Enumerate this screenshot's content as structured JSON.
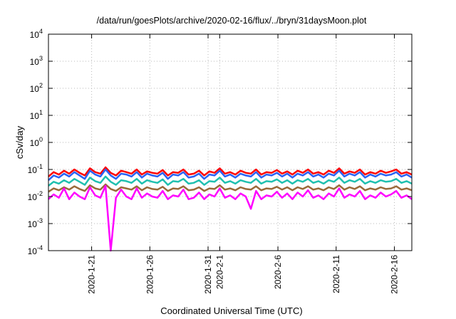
{
  "chart_data": {
    "type": "line",
    "title": "/data/run/goesPlots/archive/2020-02-16/flux/../bryn/31daysMoon.plot",
    "xlabel": "Coordinated Universal Time (UTC)",
    "ylabel": "cSv/day",
    "yscale": "log",
    "ylim": [
      0.0001,
      10000
    ],
    "xlim": [
      "2020-01-17T07:00",
      "2020-02-17T12:00"
    ],
    "grid": true,
    "y_ticks": [
      {
        "base": "10",
        "exp": "-4",
        "value": 0.0001
      },
      {
        "base": "10",
        "exp": "-3",
        "value": 0.001
      },
      {
        "base": "10",
        "exp": "-2",
        "value": 0.01
      },
      {
        "base": "10",
        "exp": "-1",
        "value": 0.1
      },
      {
        "base": "10",
        "exp": "0",
        "value": 1
      },
      {
        "base": "10",
        "exp": "1",
        "value": 10
      },
      {
        "base": "10",
        "exp": "2",
        "value": 100
      },
      {
        "base": "10",
        "exp": "3",
        "value": 1000
      },
      {
        "base": "10",
        "exp": "4",
        "value": 10000
      }
    ],
    "x_ticks": [
      {
        "label": "2020-1-21",
        "value": "2020-01-21"
      },
      {
        "label": "2020-1-26",
        "value": "2020-01-26"
      },
      {
        "label": "2020-1-31",
        "value": "2020-01-31"
      },
      {
        "label": "2020-2-1",
        "value": "2020-02-01"
      },
      {
        "label": "2020-2-6",
        "value": "2020-02-06"
      },
      {
        "label": "2020-2-11",
        "value": "2020-02-11"
      },
      {
        "label": "2020-2-16",
        "value": "2020-02-16"
      }
    ],
    "series": [
      {
        "color": "#ff0000",
        "y": [
          0.055,
          0.08,
          0.065,
          0.09,
          0.07,
          0.1,
          0.075,
          0.06,
          0.11,
          0.08,
          0.07,
          0.12,
          0.075,
          0.06,
          0.09,
          0.08,
          0.07,
          0.1,
          0.065,
          0.085,
          0.075,
          0.07,
          0.095,
          0.06,
          0.08,
          0.075,
          0.1,
          0.065,
          0.07,
          0.09,
          0.06,
          0.085,
          0.075,
          0.11,
          0.07,
          0.08,
          0.065,
          0.09,
          0.075,
          0.07,
          0.1,
          0.065,
          0.08,
          0.075,
          0.095,
          0.07,
          0.085,
          0.065,
          0.09,
          0.075,
          0.1,
          0.07,
          0.08,
          0.065,
          0.09,
          0.075,
          0.11,
          0.07,
          0.085,
          0.075,
          0.1,
          0.065,
          0.08,
          0.07,
          0.09,
          0.075,
          0.085,
          0.1,
          0.07,
          0.08,
          0.065
        ]
      },
      {
        "color": "#2b63f5",
        "y": [
          0.04,
          0.06,
          0.05,
          0.07,
          0.055,
          0.08,
          0.06,
          0.045,
          0.09,
          0.065,
          0.055,
          0.1,
          0.06,
          0.045,
          0.07,
          0.065,
          0.055,
          0.08,
          0.05,
          0.07,
          0.06,
          0.055,
          0.075,
          0.045,
          0.065,
          0.06,
          0.08,
          0.05,
          0.055,
          0.07,
          0.045,
          0.065,
          0.06,
          0.09,
          0.055,
          0.065,
          0.05,
          0.07,
          0.06,
          0.055,
          0.08,
          0.05,
          0.065,
          0.06,
          0.075,
          0.055,
          0.07,
          0.05,
          0.07,
          0.06,
          0.08,
          0.055,
          0.065,
          0.05,
          0.07,
          0.06,
          0.09,
          0.055,
          0.07,
          0.06,
          0.08,
          0.05,
          0.065,
          0.055,
          0.07,
          0.06,
          0.065,
          0.08,
          0.055,
          0.065,
          0.05
        ]
      },
      {
        "color": "#20c0b0",
        "y": [
          0.025,
          0.035,
          0.03,
          0.04,
          0.032,
          0.045,
          0.035,
          0.027,
          0.05,
          0.037,
          0.032,
          0.055,
          0.035,
          0.027,
          0.04,
          0.037,
          0.032,
          0.045,
          0.03,
          0.04,
          0.035,
          0.032,
          0.043,
          0.027,
          0.037,
          0.035,
          0.045,
          0.03,
          0.032,
          0.04,
          0.027,
          0.037,
          0.035,
          0.05,
          0.032,
          0.037,
          0.03,
          0.04,
          0.035,
          0.032,
          0.045,
          0.03,
          0.037,
          0.035,
          0.043,
          0.032,
          0.04,
          0.03,
          0.04,
          0.035,
          0.045,
          0.032,
          0.037,
          0.03,
          0.04,
          0.035,
          0.05,
          0.032,
          0.04,
          0.035,
          0.045,
          0.03,
          0.037,
          0.032,
          0.04,
          0.035,
          0.037,
          0.045,
          0.032,
          0.037,
          0.03
        ]
      },
      {
        "color": "#9a6a3a",
        "y": [
          0.015,
          0.02,
          0.017,
          0.022,
          0.018,
          0.024,
          0.019,
          0.016,
          0.026,
          0.02,
          0.018,
          0.028,
          0.019,
          0.016,
          0.022,
          0.02,
          0.018,
          0.024,
          0.017,
          0.022,
          0.019,
          0.018,
          0.023,
          0.016,
          0.02,
          0.019,
          0.024,
          0.017,
          0.018,
          0.022,
          0.016,
          0.02,
          0.019,
          0.026,
          0.018,
          0.02,
          0.017,
          0.022,
          0.019,
          0.018,
          0.024,
          0.017,
          0.02,
          0.019,
          0.023,
          0.018,
          0.022,
          0.017,
          0.022,
          0.019,
          0.024,
          0.018,
          0.02,
          0.017,
          0.022,
          0.019,
          0.026,
          0.018,
          0.022,
          0.019,
          0.024,
          0.017,
          0.02,
          0.018,
          0.022,
          0.019,
          0.02,
          0.024,
          0.018,
          0.02,
          0.017
        ]
      },
      {
        "color": "#ff00ff",
        "y": [
          0.008,
          0.012,
          0.009,
          0.02,
          0.008,
          0.014,
          0.01,
          0.008,
          0.022,
          0.011,
          0.009,
          0.025,
          0.0001,
          0.009,
          0.018,
          0.01,
          0.008,
          0.02,
          0.009,
          0.013,
          0.01,
          0.009,
          0.016,
          0.008,
          0.011,
          0.01,
          0.018,
          0.008,
          0.009,
          0.014,
          0.008,
          0.012,
          0.01,
          0.02,
          0.009,
          0.011,
          0.008,
          0.013,
          0.01,
          0.0035,
          0.016,
          0.008,
          0.011,
          0.01,
          0.015,
          0.009,
          0.013,
          0.008,
          0.014,
          0.01,
          0.017,
          0.009,
          0.011,
          0.008,
          0.013,
          0.01,
          0.02,
          0.009,
          0.012,
          0.01,
          0.016,
          0.008,
          0.011,
          0.009,
          0.014,
          0.01,
          0.012,
          0.016,
          0.009,
          0.011,
          0.008
        ]
      }
    ]
  }
}
